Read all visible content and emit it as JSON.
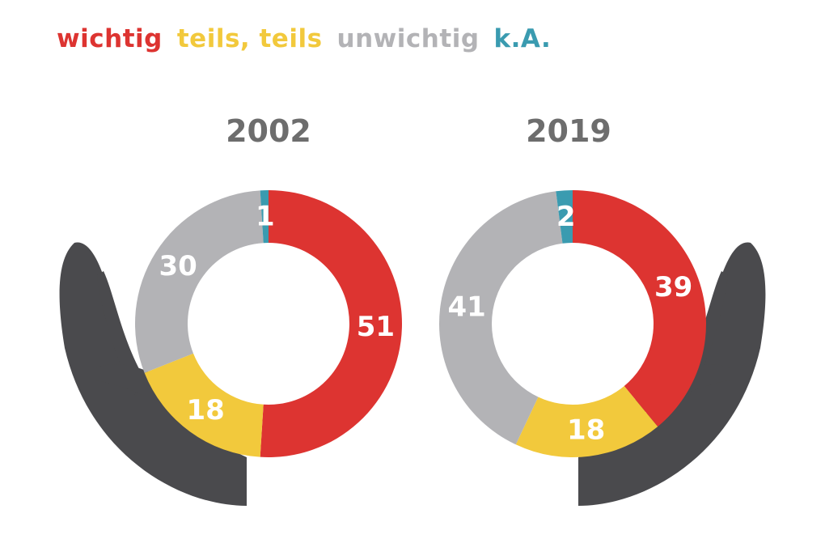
{
  "legend": [
    {
      "label": "wichtig",
      "color": "#dd3431"
    },
    {
      "label": "teils, teils",
      "color": "#f2c93c"
    },
    {
      "label": "unwichtig",
      "color": "#b3b3b6"
    },
    {
      "label": "k.A.",
      "color": "#3a9bb0"
    }
  ],
  "colors": {
    "hand": "#4a4a4d"
  },
  "chart_data": [
    {
      "type": "pie",
      "title": "2002",
      "categories": [
        "wichtig",
        "teils, teils",
        "unwichtig",
        "k.A."
      ],
      "values": [
        51,
        18,
        30,
        1
      ],
      "labels": [
        "51",
        "18",
        "30",
        "1"
      ]
    },
    {
      "type": "pie",
      "title": "2019",
      "categories": [
        "wichtig",
        "teils, teils",
        "unwichtig",
        "k.A."
      ],
      "values": [
        39,
        18,
        41,
        2
      ],
      "labels": [
        "39",
        "18",
        "41",
        "2"
      ]
    }
  ]
}
